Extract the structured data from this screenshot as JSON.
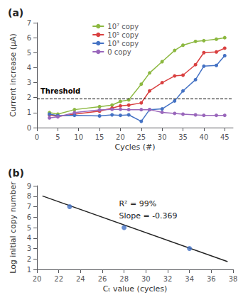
{
  "chart_data": [
    {
      "type": "line",
      "title": "(a)",
      "xlabel": "Cycles (#)",
      "ylabel": "Current increase (μA)",
      "x": [
        3,
        5,
        9,
        15,
        18,
        20,
        22,
        25,
        27,
        30,
        33,
        35,
        38,
        40,
        43,
        45
      ],
      "xlim": [
        0,
        47
      ],
      "xticks": [
        0,
        5,
        10,
        15,
        20,
        25,
        30,
        35,
        40,
        45
      ],
      "ylim": [
        0,
        7
      ],
      "yticks": [
        0,
        1,
        2,
        3,
        4,
        5,
        6,
        7
      ],
      "grid": false,
      "legend": "upper left",
      "threshold": {
        "value": 1.95,
        "label": "Threshold",
        "color": "#000000",
        "line_style": "dashed"
      },
      "series": [
        {
          "name": "10⁷ copy",
          "color": "#8CB840",
          "marker": "circle",
          "values": [
            1.0,
            0.9,
            1.2,
            1.4,
            1.5,
            1.75,
            1.85,
            2.9,
            3.65,
            4.4,
            5.15,
            5.5,
            5.75,
            5.8,
            5.9,
            6.0
          ]
        },
        {
          "name": "10⁵ copy",
          "color": "#D94040",
          "marker": "circle",
          "values": [
            0.85,
            0.75,
            0.9,
            1.1,
            1.3,
            1.45,
            1.5,
            1.65,
            2.45,
            3.0,
            3.45,
            3.5,
            4.2,
            5.0,
            5.05,
            5.3
          ]
        },
        {
          "name": "10³ copy",
          "color": "#4472C4",
          "marker": "circle",
          "values": [
            0.9,
            0.8,
            0.82,
            0.78,
            0.85,
            0.82,
            0.85,
            0.42,
            1.2,
            1.25,
            1.78,
            2.45,
            3.2,
            4.1,
            4.15,
            4.8
          ]
        },
        {
          "name": "0 copy",
          "color": "#9966BB",
          "marker": "circle",
          "values": [
            0.65,
            0.72,
            1.0,
            1.18,
            1.22,
            1.22,
            1.2,
            1.2,
            1.2,
            1.02,
            0.95,
            0.9,
            0.85,
            0.82,
            0.82,
            0.82
          ]
        }
      ]
    },
    {
      "type": "scatter",
      "title": "(b)",
      "xlabel": "Cₜ value (cycles)",
      "ylabel": "Log initial copy number",
      "annotation": "R² = 99%\nSlope = -0.369",
      "xlim": [
        20,
        38
      ],
      "xticks": [
        20,
        22,
        24,
        26,
        28,
        30,
        32,
        34,
        36,
        38
      ],
      "ylim": [
        1,
        9
      ],
      "yticks": [
        1,
        2,
        3,
        4,
        5,
        6,
        7,
        8,
        9
      ],
      "grid": false,
      "series": [
        {
          "type": "line",
          "color": "#222222",
          "x": [
            20.5,
            37.5
          ],
          "values": [
            8.0225,
            1.7495
          ]
        },
        {
          "type": "scatter",
          "color": "#4472C4",
          "marker": "circle",
          "x": [
            23,
            28,
            34
          ],
          "values": [
            7,
            5,
            3
          ]
        }
      ]
    }
  ]
}
